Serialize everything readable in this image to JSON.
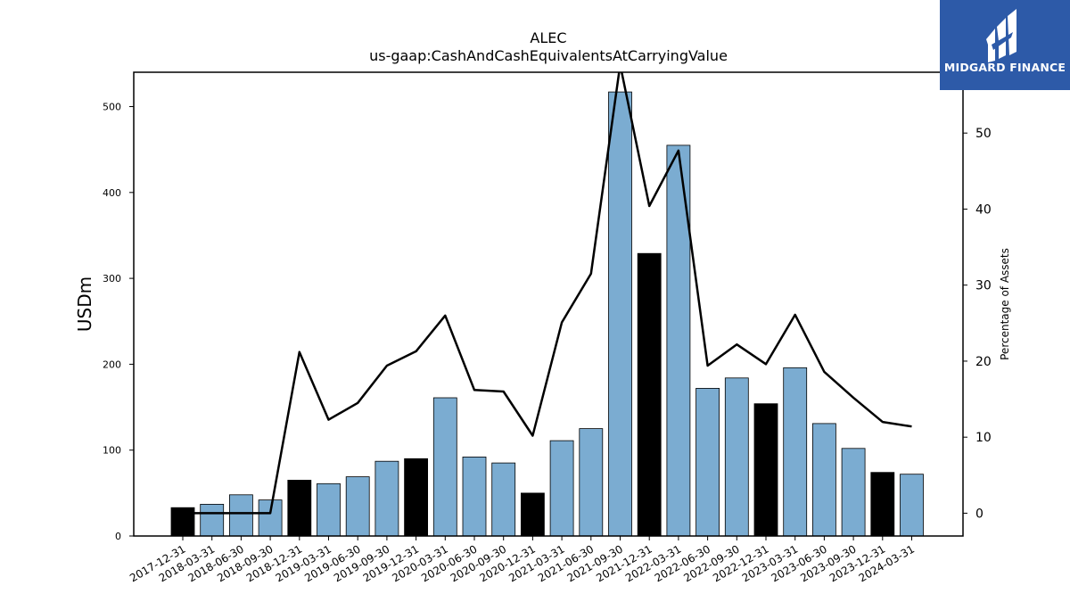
{
  "brand": {
    "name": "MIDGARD FINANCE",
    "logo_bg": "#2d5aa8",
    "icon": "midgard-logo-mark"
  },
  "chart_data": {
    "type": "bar",
    "title": "ALEC",
    "subtitle": "us-gaap:CashAndCashEquivalentsAtCarryingValue",
    "ylabel": "USDm",
    "y2label": "Percentage of Assets",
    "ylim": [
      0,
      540
    ],
    "y2lim": [
      -3,
      58
    ],
    "yticks": [
      0,
      100,
      200,
      300,
      400,
      500
    ],
    "y2ticks": [
      0,
      10,
      20,
      30,
      40,
      50
    ],
    "grid": false,
    "categories": [
      "2017-12-31",
      "2018-03-31",
      "2018-06-30",
      "2018-09-30",
      "2018-12-31",
      "2019-03-31",
      "2019-06-30",
      "2019-09-30",
      "2019-12-31",
      "2020-03-31",
      "2020-06-30",
      "2020-09-30",
      "2020-12-31",
      "2021-03-31",
      "2021-06-30",
      "2021-09-30",
      "2021-12-31",
      "2022-03-31",
      "2022-06-30",
      "2022-09-30",
      "2022-12-31",
      "2023-03-31",
      "2023-06-30",
      "2023-09-30",
      "2023-12-31",
      "2024-03-31"
    ],
    "series": [
      {
        "kind": "bar",
        "values": [
          33,
          37,
          48,
          42,
          65,
          61,
          69,
          87,
          90,
          161,
          92,
          85,
          50,
          111,
          125,
          517,
          329,
          455,
          172,
          184,
          154,
          196,
          131,
          102,
          74,
          72
        ],
        "bar_colors": [
          "#000000",
          "#7bacd1",
          "#7bacd1",
          "#7bacd1",
          "#000000",
          "#7bacd1",
          "#7bacd1",
          "#7bacd1",
          "#000000",
          "#7bacd1",
          "#7bacd1",
          "#7bacd1",
          "#000000",
          "#7bacd1",
          "#7bacd1",
          "#7bacd1",
          "#000000",
          "#7bacd1",
          "#7bacd1",
          "#7bacd1",
          "#000000",
          "#7bacd1",
          "#7bacd1",
          "#7bacd1",
          "#000000",
          "#7bacd1"
        ]
      },
      {
        "kind": "line",
        "axis": "right",
        "color": "#000000",
        "values": [
          0,
          0,
          0,
          0,
          21.2,
          12.3,
          14.5,
          19.4,
          21.3,
          26.0,
          16.2,
          16.0,
          10.2,
          25.1,
          31.5,
          59.0,
          40.4,
          47.7,
          19.4,
          22.2,
          19.6,
          26.1,
          18.6,
          15.2,
          12.0,
          11.4
        ]
      }
    ]
  }
}
